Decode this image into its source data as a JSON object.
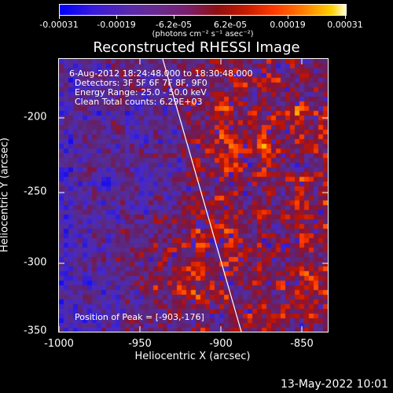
{
  "colorbar": {
    "tick_labels": [
      "-0.00031",
      "-0.00019",
      "-6.2e-05",
      "6.2e-05",
      "0.00019",
      "0.00031"
    ],
    "unit": "(photons cm⁻² s⁻¹ asec⁻²)"
  },
  "title": "Reconstructed RHESSI Image",
  "info": {
    "time_range": "6-Aug-2012 18:24:48.000 to 18:30:48.000",
    "detectors": "Detectors: 3F 5F 6F 7F 8F, 9F0",
    "energy": "Energy Range: 25.0 - 50.0 keV",
    "method": "Clean     Total counts: 6.29E+03",
    "peak": "Position of Peak = [-903,-176]"
  },
  "axes": {
    "xlabel": "Heliocentric X (arcsec)",
    "ylabel": "Heliocentric Y (arcsec)",
    "xticks": [
      "-1000",
      "-950",
      "-900",
      "-850"
    ],
    "yticks": [
      "-200",
      "-250",
      "-300",
      "-350"
    ]
  },
  "timestamp": "13-May-2022 10:01"
}
